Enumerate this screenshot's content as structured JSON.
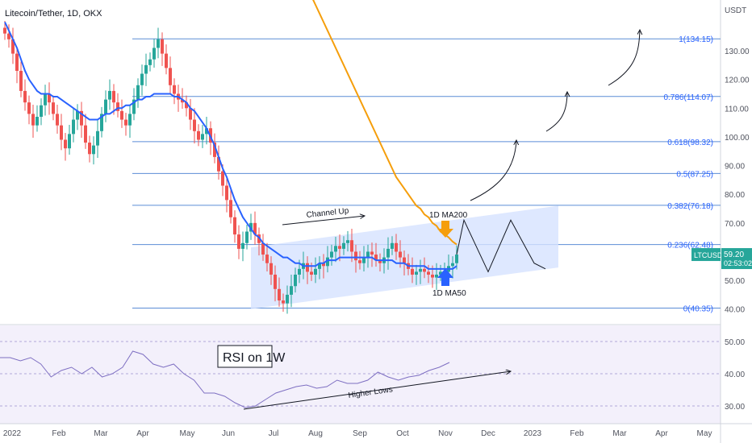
{
  "title": "Litecoin/Tether, 1D, OKX",
  "currency": "USDT",
  "chart_data": {
    "type": "candlestick",
    "symbol": "LTCUSDT",
    "price": {
      "last": "59.20",
      "countdown": "02:53:02",
      "ylim": [
        36,
        146
      ],
      "y_ticks": [
        "130.00",
        "120.00",
        "110.00",
        "100.00",
        "90.00",
        "80.00",
        "70.00",
        "60.00",
        "50.00",
        "40.00"
      ],
      "y_tick_values": [
        130,
        120,
        110,
        100,
        90,
        80,
        70,
        60,
        50,
        40
      ],
      "closes": [
        136,
        134,
        129,
        123,
        116,
        112,
        108,
        104,
        107,
        111,
        115,
        112,
        108,
        104,
        99,
        96,
        101,
        106,
        109,
        104,
        98,
        94,
        97,
        102,
        108,
        113,
        116,
        112,
        109,
        106,
        104,
        108,
        113,
        118,
        122,
        125,
        127,
        131,
        134,
        129,
        124,
        118,
        115,
        113,
        112,
        110,
        106,
        102,
        99,
        101,
        103,
        98,
        93,
        88,
        83,
        78,
        72,
        66,
        61,
        63,
        67,
        70,
        66,
        63,
        59,
        56,
        52,
        47,
        43,
        42,
        45,
        48,
        52,
        54,
        56,
        53,
        52,
        54,
        56,
        55,
        58,
        60,
        62,
        61,
        63,
        64,
        60,
        57,
        56,
        58,
        60,
        59,
        57,
        56,
        58,
        61,
        63,
        60,
        58,
        56,
        54,
        52,
        53,
        54,
        53,
        52,
        51,
        52,
        53,
        53,
        55,
        56,
        59
      ],
      "ma50": [
        140,
        137,
        134,
        131,
        127,
        123,
        120,
        118,
        116,
        115,
        115,
        115,
        114,
        114,
        113,
        112,
        111,
        110,
        109,
        108,
        107,
        106,
        106,
        106,
        107,
        108,
        108,
        109,
        110,
        110,
        111,
        111,
        112,
        113,
        113,
        114,
        114,
        115,
        115,
        115,
        115,
        115,
        114,
        114,
        113,
        112,
        110,
        109,
        107,
        105,
        103,
        100,
        97,
        93,
        89,
        86,
        82,
        78,
        75,
        72,
        70,
        68,
        66,
        65,
        63,
        62,
        61,
        60,
        59,
        58,
        58,
        57,
        56,
        56,
        55,
        55,
        55,
        55,
        56,
        56,
        57,
        57,
        57,
        58,
        58,
        58,
        58,
        58,
        58,
        58,
        58,
        58,
        57,
        57,
        57,
        57,
        57,
        56,
        56,
        56,
        55,
        55,
        55,
        55,
        55,
        54,
        54,
        54,
        54,
        54,
        54,
        54,
        55
      ],
      "ma200": [
        170,
        167,
        163,
        159,
        156,
        152,
        149,
        146,
        143,
        140,
        137,
        134,
        131,
        128,
        125,
        122,
        119,
        116,
        113,
        110,
        107,
        104,
        101,
        98,
        95,
        92,
        89,
        86,
        84,
        82,
        80,
        78,
        76,
        75,
        73,
        72,
        70,
        69,
        67,
        66,
        65,
        63.5,
        62.5
      ],
      "ma200_start_index": 70
    },
    "fib_levels": [
      {
        "label": "1(134.15)",
        "value": 134.15
      },
      {
        "label": "0.786(114.07)",
        "value": 114.07
      },
      {
        "label": "0.618(98.32)",
        "value": 98.32
      },
      {
        "label": "0.5(87.25)",
        "value": 87.25
      },
      {
        "label": "0.382(76.18)",
        "value": 76.18
      },
      {
        "label": "0.236(62.48)",
        "value": 62.48
      },
      {
        "label": "0(40.35)",
        "value": 40.35
      }
    ],
    "channel": {
      "label": "Channel Up",
      "lower_start": 40,
      "lower_end": 54.5,
      "upper_start": 61.5,
      "upper_end": 76
    },
    "rsi": {
      "label": "RSI on 1W",
      "ylim": [
        26,
        54
      ],
      "y_ticks": [
        "50.00",
        "40.00",
        "30.00"
      ],
      "y_tick_values": [
        50,
        40,
        30
      ],
      "values": [
        45,
        45,
        44,
        45,
        43,
        39,
        41,
        42,
        40,
        42,
        39,
        40,
        42,
        47,
        46,
        43,
        42,
        43,
        40,
        38,
        34,
        34,
        33,
        31,
        29.5,
        30,
        32,
        34,
        35,
        36,
        36.5,
        35.5,
        36,
        38,
        37,
        37,
        38,
        40.5,
        39,
        38,
        39,
        39.5,
        41,
        42,
        43.5
      ],
      "trend_label": "Higher Lows"
    },
    "annotations": {
      "ma200": "1D MA200",
      "ma50": "1D MA50"
    },
    "x_ticks": [
      "2022",
      "Feb",
      "Mar",
      "Apr",
      "May",
      "Jun",
      "Jul",
      "Aug",
      "Sep",
      "Oct",
      "Nov",
      "Dec",
      "2023",
      "Feb",
      "Mar",
      "Apr",
      "May"
    ],
    "colors": {
      "up": "#26a69a",
      "down": "#ef5350",
      "ma50": "#2962ff",
      "ma200": "#f59e0b",
      "fib": "#5b8dd6",
      "channel": "#dbe6ff",
      "rsi": "#7e6fc2",
      "last": "#26a69a"
    }
  }
}
